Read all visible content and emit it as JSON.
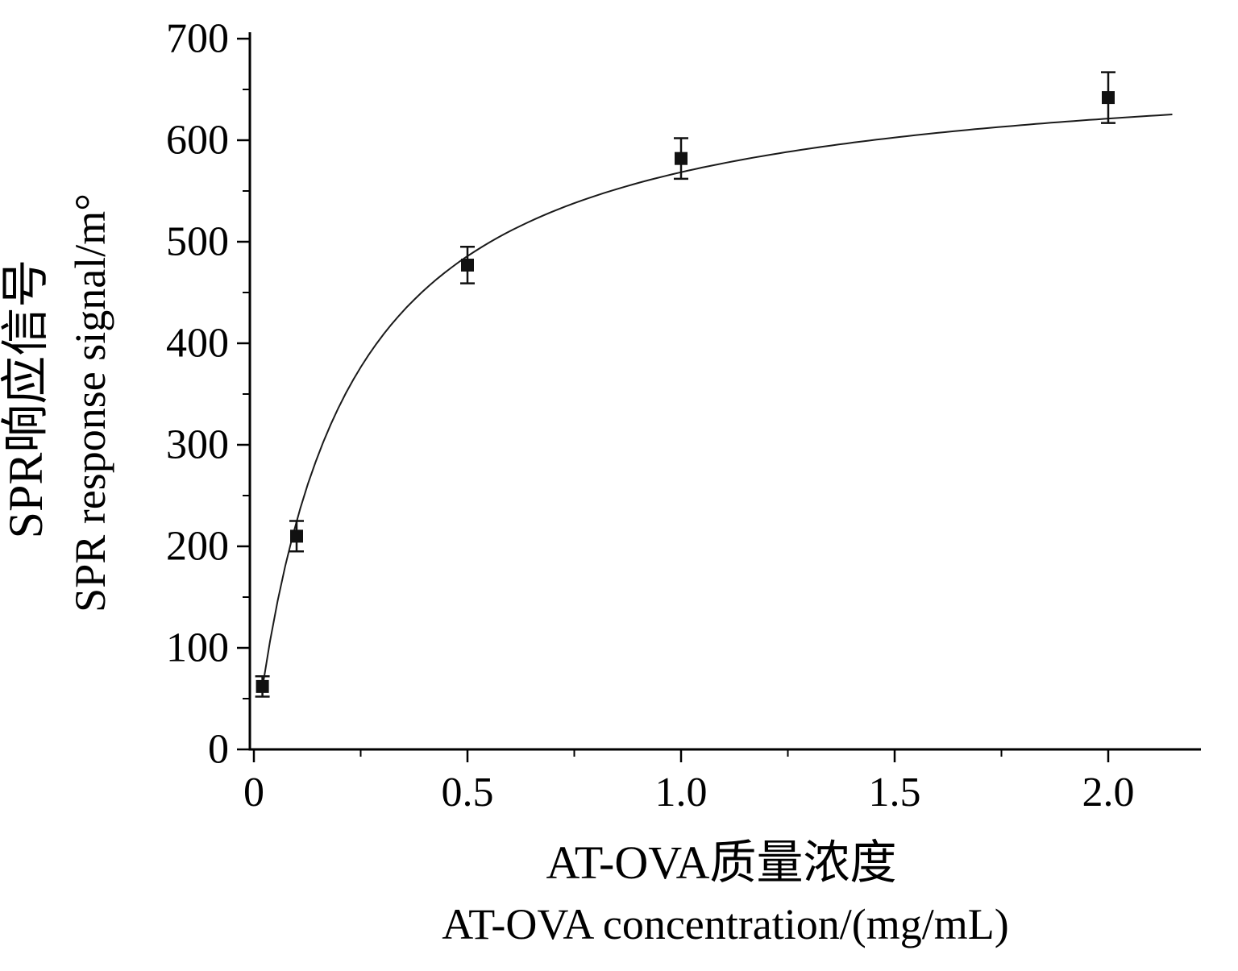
{
  "figure": {
    "background": "#ffffff",
    "ink_color": "#000000"
  },
  "chart_data": {
    "type": "scatter",
    "title": "",
    "x_label_zh": "AT-OVA质量浓度",
    "x_label_en": "AT-OVA concentration/(mg/mL)",
    "y_label_zh": "SPR响应信号",
    "y_label_en": "SPR response signal/m°",
    "x": [
      0.02,
      0.1,
      0.5,
      1.0,
      2.0
    ],
    "y": [
      62,
      210,
      477,
      582,
      642
    ],
    "y_err": [
      10,
      15,
      18,
      20,
      25
    ],
    "xlim": [
      0,
      2.22
    ],
    "ylim": [
      0,
      700
    ],
    "x_ticks": [
      {
        "v": 0,
        "label": "0"
      },
      {
        "v": 0.5,
        "label": "0.5"
      },
      {
        "v": 1.0,
        "label": "1.0"
      },
      {
        "v": 1.5,
        "label": "1.5"
      },
      {
        "v": 2.0,
        "label": "2.0"
      }
    ],
    "x_minor_ticks": [
      0.25,
      0.75,
      1.25,
      1.75
    ],
    "y_ticks": [
      {
        "v": 0,
        "label": "0"
      },
      {
        "v": 100,
        "label": "100"
      },
      {
        "v": 200,
        "label": "200"
      },
      {
        "v": 300,
        "label": "300"
      },
      {
        "v": 400,
        "label": "400"
      },
      {
        "v": 500,
        "label": "500"
      },
      {
        "v": 600,
        "label": "600"
      },
      {
        "v": 700,
        "label": "700"
      }
    ],
    "y_minor_ticks": [
      50,
      150,
      250,
      350,
      450,
      550,
      650
    ],
    "fit_curve": {
      "model": "y = Bmax*x/(Kd+x)",
      "Bmax": 685,
      "Kd": 0.205,
      "x_start": 0.02,
      "x_end": 2.15
    },
    "marker": {
      "shape": "square",
      "color": "#111111",
      "size": 16
    },
    "line_color": "#1a1a1a",
    "grid": false,
    "legend": null
  }
}
